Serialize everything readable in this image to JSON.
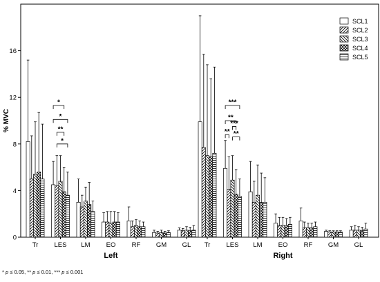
{
  "chart_data": {
    "type": "bar",
    "ylabel": "% MVC",
    "ylim": [
      0,
      20
    ],
    "yticks": [
      0,
      4,
      8,
      12,
      16
    ],
    "grid": false,
    "legend_position": "top-right",
    "panels": [
      {
        "name": "Left",
        "categories": [
          "Tr",
          "LES",
          "LM",
          "EO",
          "RF",
          "GM",
          "GL"
        ],
        "values": {
          "SCL1": [
            8.2,
            4.5,
            3.0,
            1.3,
            1.4,
            0.4,
            0.6
          ],
          "SCL2": [
            5.0,
            4.4,
            2.6,
            1.3,
            0.9,
            0.35,
            0.55
          ],
          "SCL3": [
            5.4,
            4.8,
            3.1,
            1.2,
            1.0,
            0.4,
            0.6
          ],
          "SCL4": [
            5.6,
            3.9,
            2.8,
            1.3,
            0.9,
            0.35,
            0.55
          ],
          "SCL5": [
            5.0,
            3.6,
            2.2,
            1.3,
            0.9,
            0.4,
            0.6
          ]
        },
        "errors": {
          "SCL1": [
            7.0,
            2.0,
            2.0,
            0.8,
            1.2,
            0.2,
            0.2
          ],
          "SCL2": [
            3.7,
            2.6,
            1.0,
            0.9,
            0.5,
            0.15,
            0.2
          ],
          "SCL3": [
            4.5,
            2.2,
            1.2,
            1.0,
            0.5,
            0.2,
            0.3
          ],
          "SCL4": [
            5.1,
            2.1,
            1.9,
            0.9,
            0.5,
            0.15,
            0.3
          ],
          "SCL5": [
            4.7,
            2.0,
            0.9,
            0.8,
            0.4,
            0.15,
            0.4
          ]
        },
        "significance": [
          {
            "category": "LES",
            "from": "SCL1",
            "to": "SCL4",
            "label": "*"
          },
          {
            "category": "LES",
            "from": "SCL1",
            "to": "SCL5",
            "label": "*"
          },
          {
            "category": "LES",
            "from": "SCL2",
            "to": "SCL4",
            "label": "**"
          },
          {
            "category": "LES",
            "from": "SCL2",
            "to": "SCL5",
            "label": "*"
          }
        ]
      },
      {
        "name": "Right",
        "categories": [
          "Tr",
          "LES",
          "LM",
          "EO",
          "RF",
          "GM",
          "GL"
        ],
        "values": {
          "SCL1": [
            9.9,
            5.9,
            3.9,
            1.2,
            1.4,
            0.5,
            0.6
          ],
          "SCL2": [
            7.7,
            4.1,
            3.0,
            1.0,
            0.8,
            0.45,
            0.6
          ],
          "SCL3": [
            7.0,
            4.9,
            3.6,
            1.0,
            0.8,
            0.45,
            0.6
          ],
          "SCL4": [
            6.9,
            3.7,
            3.0,
            1.0,
            0.8,
            0.45,
            0.55
          ],
          "SCL5": [
            7.2,
            3.5,
            3.0,
            1.1,
            0.9,
            0.45,
            0.7
          ]
        },
        "errors": {
          "SCL1": [
            9.1,
            2.4,
            2.6,
            0.8,
            1.1,
            0.1,
            0.3
          ],
          "SCL2": [
            8.0,
            2.8,
            1.8,
            0.7,
            0.5,
            0.1,
            0.4
          ],
          "SCL3": [
            7.8,
            2.1,
            2.6,
            0.7,
            0.4,
            0.1,
            0.3
          ],
          "SCL4": [
            6.7,
            2.1,
            2.5,
            0.6,
            0.4,
            0.1,
            0.3
          ],
          "SCL5": [
            7.4,
            1.5,
            2.1,
            0.6,
            0.4,
            0.1,
            0.5
          ]
        },
        "significance": [
          {
            "category": "LES",
            "from": "SCL1",
            "to": "SCL2",
            "label": "**"
          },
          {
            "category": "LES",
            "from": "SCL1",
            "to": "SCL4",
            "label": "**"
          },
          {
            "category": "LES",
            "from": "SCL1",
            "to": "SCL5",
            "label": "***"
          },
          {
            "category": "LES",
            "from": "SCL3",
            "to": "SCL4",
            "label": "***"
          },
          {
            "category": "LES",
            "from": "SCL3",
            "to": "SCL5",
            "label": "**"
          },
          {
            "category": "LES",
            "from": "SCL1",
            "to": "SCL5",
            "label": "***"
          }
        ]
      }
    ],
    "series": [
      {
        "name": "SCL1",
        "pattern": "solid"
      },
      {
        "name": "SCL2",
        "pattern": "diagonal-up"
      },
      {
        "name": "SCL3",
        "pattern": "diagonal-down"
      },
      {
        "name": "SCL4",
        "pattern": "crosshatch"
      },
      {
        "name": "SCL5",
        "pattern": "horizontal"
      }
    ]
  },
  "footnote": {
    "p1_prefix": "* ",
    "p1_var": "p",
    "p1_rest": " ≤ 0.05, ",
    "p2_prefix": "** ",
    "p2_var": "p",
    "p2_rest": " ≤ 0.01, ",
    "p3_prefix": "*** ",
    "p3_var": "p",
    "p3_rest": " ≤ 0.001"
  }
}
